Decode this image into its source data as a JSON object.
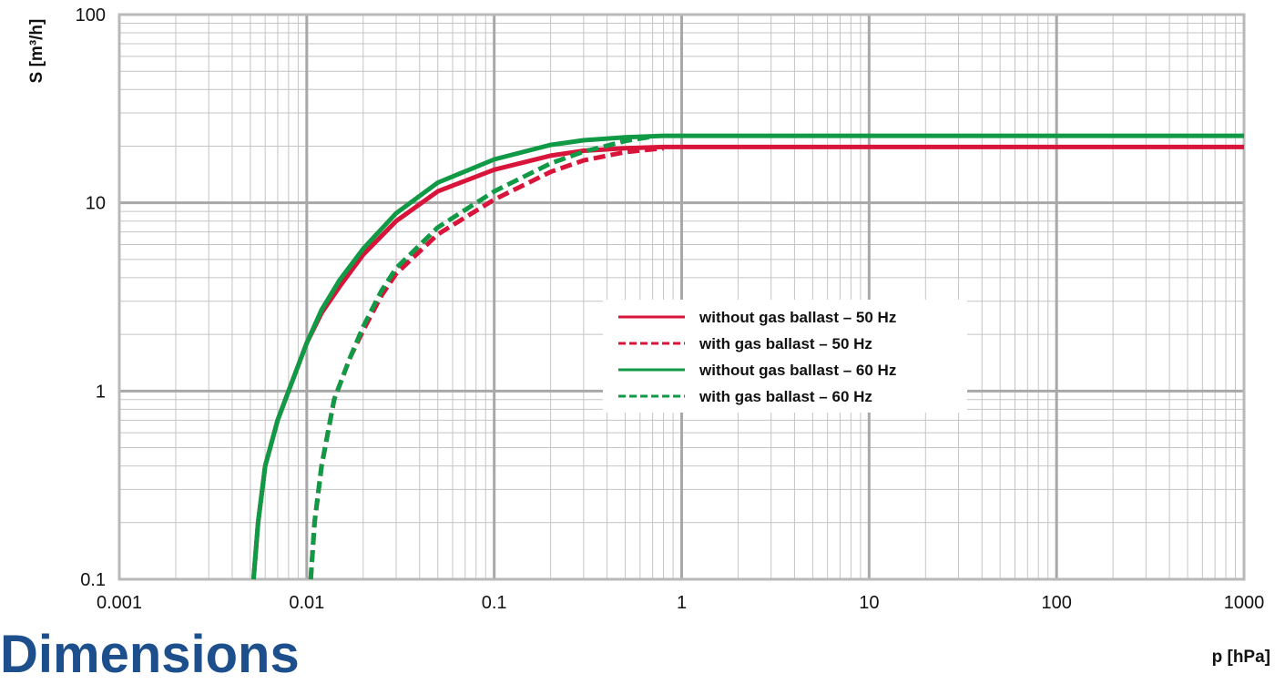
{
  "chart_data": {
    "type": "line",
    "xscale": "log",
    "yscale": "log",
    "xlim": [
      0.001,
      1000
    ],
    "ylim": [
      0.1,
      100
    ],
    "xlabel": "p [hPa]",
    "ylabel": "S [m³/h]",
    "x_ticks": [
      "0.001",
      "0.01",
      "0.1",
      "1",
      "10",
      "100",
      "1000"
    ],
    "y_ticks": [
      "0.1",
      "1",
      "10",
      "100"
    ],
    "grid": true,
    "legend_position": "center-right",
    "series": [
      {
        "name": "without gas ballast – 50 Hz",
        "color": "#d8143a",
        "dash": "solid",
        "x": [
          0.0052,
          0.0055,
          0.006,
          0.007,
          0.008,
          0.01,
          0.012,
          0.015,
          0.02,
          0.03,
          0.05,
          0.1,
          0.2,
          0.3,
          0.5,
          0.8,
          1,
          10,
          100,
          1000
        ],
        "y": [
          0.1,
          0.2,
          0.4,
          0.7,
          1.0,
          1.8,
          2.6,
          3.6,
          5.3,
          8.0,
          11.5,
          15.0,
          17.8,
          18.9,
          19.5,
          19.8,
          19.8,
          19.8,
          19.8,
          19.8
        ]
      },
      {
        "name": "with gas ballast – 50 Hz",
        "color": "#d8143a",
        "dash": "dashed",
        "x": [
          0.0105,
          0.011,
          0.012,
          0.014,
          0.017,
          0.02,
          0.025,
          0.03,
          0.05,
          0.1,
          0.2,
          0.3,
          0.5,
          0.8
        ],
        "y": [
          0.1,
          0.2,
          0.4,
          0.9,
          1.5,
          2.1,
          3.2,
          4.2,
          6.8,
          10.4,
          14.6,
          16.8,
          18.6,
          19.5
        ]
      },
      {
        "name": "without gas ballast – 60 Hz",
        "color": "#119a45",
        "dash": "solid",
        "x": [
          0.0052,
          0.0055,
          0.006,
          0.007,
          0.008,
          0.01,
          0.012,
          0.015,
          0.02,
          0.03,
          0.05,
          0.1,
          0.2,
          0.3,
          0.5,
          0.8,
          1,
          10,
          100,
          1000
        ],
        "y": [
          0.1,
          0.2,
          0.4,
          0.7,
          1.0,
          1.8,
          2.7,
          3.9,
          5.7,
          8.8,
          12.8,
          17.0,
          20.3,
          21.5,
          22.3,
          22.7,
          22.7,
          22.7,
          22.7,
          22.7
        ]
      },
      {
        "name": "with gas ballast – 60 Hz",
        "color": "#119a45",
        "dash": "dashed",
        "x": [
          0.0105,
          0.011,
          0.012,
          0.014,
          0.017,
          0.02,
          0.025,
          0.03,
          0.05,
          0.1,
          0.2,
          0.3,
          0.5,
          0.7
        ],
        "y": [
          0.1,
          0.2,
          0.4,
          0.9,
          1.5,
          2.2,
          3.4,
          4.5,
          7.4,
          11.5,
          16.2,
          18.7,
          21.3,
          22.5
        ]
      }
    ]
  },
  "page_partial_text": "Dimensions"
}
